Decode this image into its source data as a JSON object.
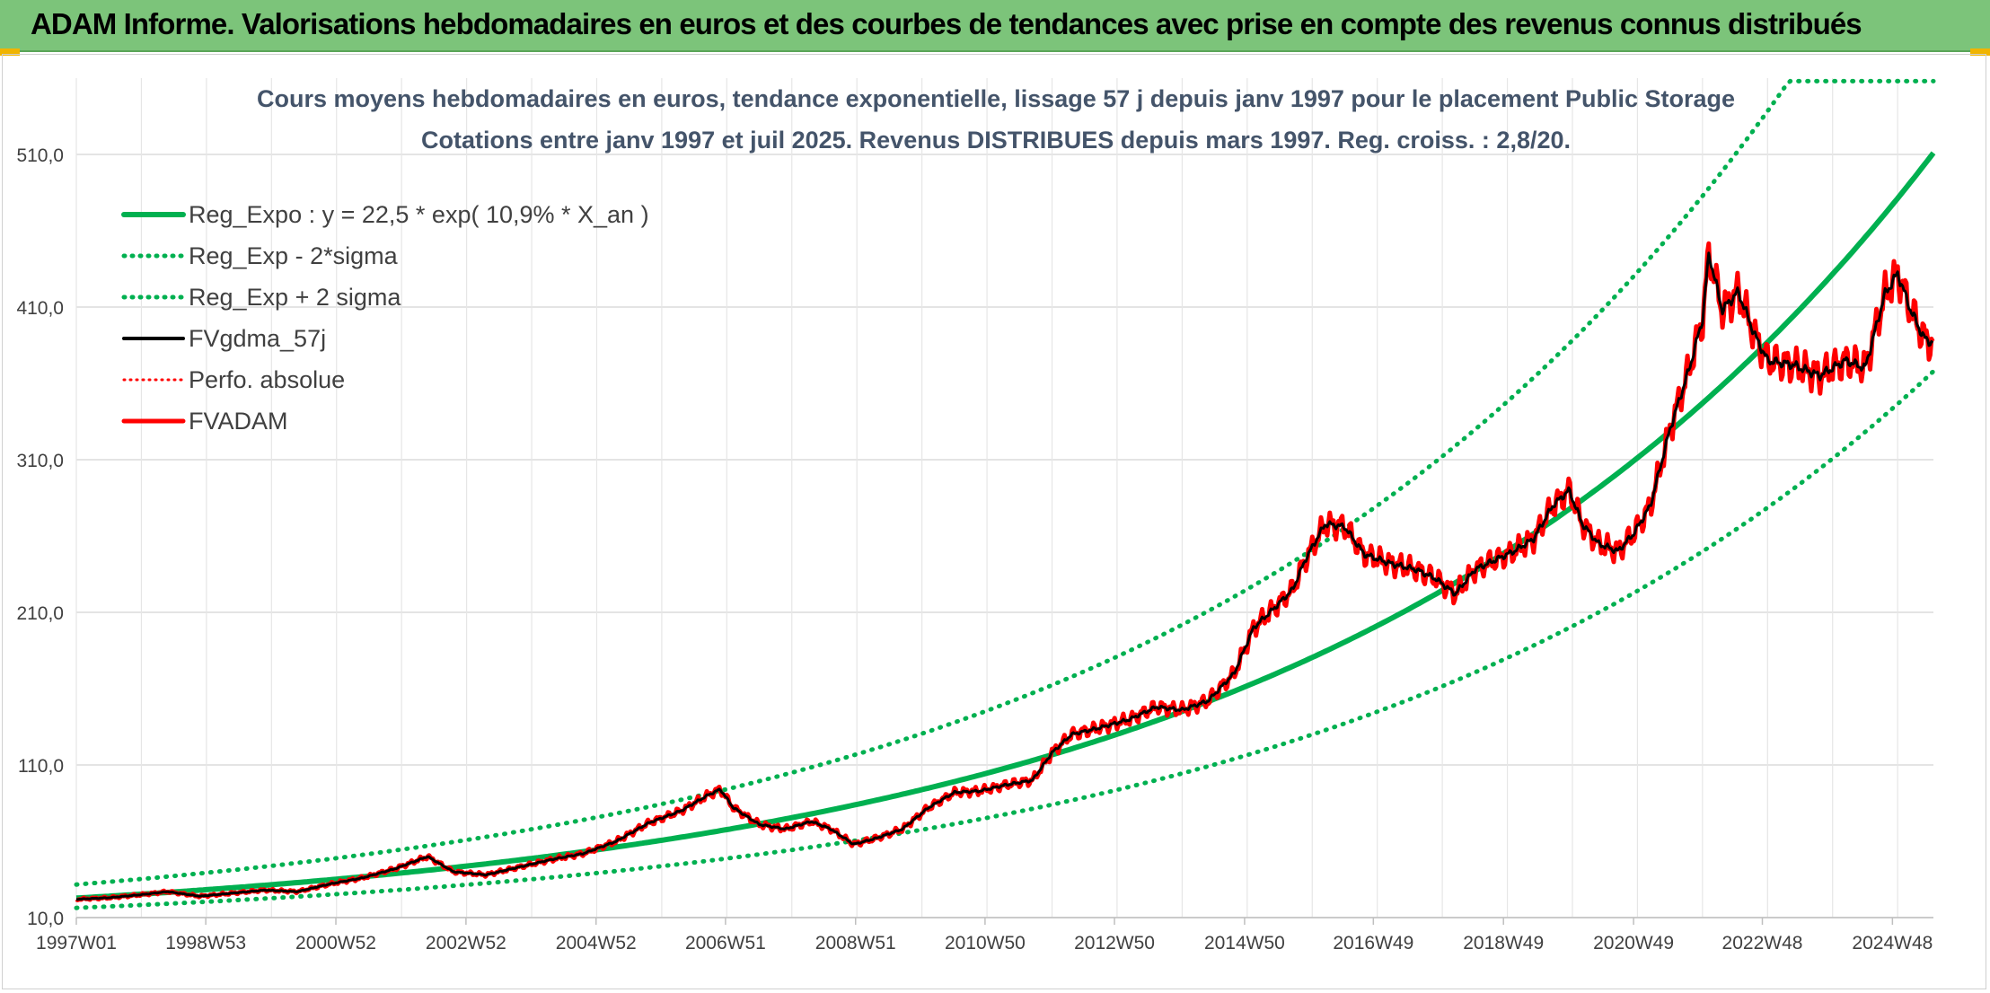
{
  "header": {
    "title": "ADAM Informe. Valorisations hebdomadaires en euros et des courbes de tendances avec prise en compte des revenus connus distribués"
  },
  "colors": {
    "header_bg": "#7cc47a",
    "trend_green": "#00b050",
    "smooth_black": "#000000",
    "price_red": "#ff0000",
    "grid": "#e0e0e0",
    "text": "#404040"
  },
  "chart_data": {
    "type": "line",
    "title": "Cours moyens hebdomadaires en euros, tendance exponentielle, lissage 57 j depuis janv 1997 pour le placement Public Storage",
    "subtitle": "Cotations entre janv 1997 et juil 2025. Revenus DISTRIBUES depuis mars 1997. Reg. croiss. : 2,8/20.",
    "xlabel": "",
    "ylabel": "",
    "x_range": [
      1997.0,
      2025.55
    ],
    "y_range": [
      10,
      560
    ],
    "y_ticks": [
      10,
      110,
      210,
      310,
      410,
      510
    ],
    "y_tick_labels": [
      "10,0",
      "110,0",
      "210,0",
      "310,0",
      "410,0",
      "510,0"
    ],
    "x_ticks": [
      1997.0,
      1998.99,
      2000.99,
      2002.99,
      2004.99,
      2006.98,
      2008.98,
      2010.97,
      2012.96,
      2014.96,
      2016.94,
      2018.94,
      2020.94,
      2022.92,
      2024.92
    ],
    "x_tick_labels": [
      "1997W01",
      "1998W53",
      "2000W52",
      "2002W52",
      "2004W52",
      "2006W51",
      "2008W51",
      "2010W50",
      "2012W50",
      "2014W50",
      "2016W49",
      "2018W49",
      "2020W49",
      "2022W48",
      "2024W48"
    ],
    "grid": true,
    "legend_position": "top-left",
    "series": [
      {
        "name": "Reg_Expo : y = 22,5 * exp( 10,9% *  X_an )",
        "color": "#00b050",
        "style": "solid",
        "width": 6,
        "formula": {
          "a": 22.5,
          "b": 0.109,
          "x0": 1996.9
        }
      },
      {
        "name": "Reg_Exp - 2*sigma",
        "color": "#00b050",
        "style": "dotted",
        "width": 5,
        "formula": {
          "a": 16.2,
          "b": 0.109,
          "x0": 1996.9
        }
      },
      {
        "name": "Reg_Exp + 2 sigma",
        "color": "#00b050",
        "style": "dotted",
        "width": 5,
        "formula": {
          "a": 31.3,
          "b": 0.109,
          "x0": 1996.9
        },
        "cap": 558
      },
      {
        "name": "FVgdma_57j",
        "color": "#000000",
        "style": "solid",
        "width": 3
      },
      {
        "name": "Perfo. absolue",
        "color": "#ff0000",
        "style": "dotted",
        "width": 3
      },
      {
        "name": "FVADAM",
        "color": "#ff0000",
        "style": "solid",
        "width": 5
      }
    ],
    "fvadam_points": [
      [
        1997.0,
        22
      ],
      [
        1997.5,
        23
      ],
      [
        1998.0,
        25
      ],
      [
        1998.4,
        27
      ],
      [
        1998.9,
        24
      ],
      [
        1999.4,
        26
      ],
      [
        1999.9,
        28
      ],
      [
        2000.4,
        27
      ],
      [
        2000.9,
        32
      ],
      [
        2001.4,
        36
      ],
      [
        2001.9,
        42
      ],
      [
        2002.4,
        50
      ],
      [
        2002.8,
        40
      ],
      [
        2003.3,
        38
      ],
      [
        2003.8,
        43
      ],
      [
        2004.3,
        48
      ],
      [
        2004.8,
        52
      ],
      [
        2005.3,
        60
      ],
      [
        2005.8,
        72
      ],
      [
        2006.3,
        80
      ],
      [
        2006.7,
        90
      ],
      [
        2006.9,
        94
      ],
      [
        2007.1,
        82
      ],
      [
        2007.5,
        71
      ],
      [
        2007.9,
        68
      ],
      [
        2008.3,
        73
      ],
      [
        2008.6,
        68
      ],
      [
        2008.95,
        58
      ],
      [
        2009.3,
        62
      ],
      [
        2009.7,
        68
      ],
      [
        2010.1,
        82
      ],
      [
        2010.5,
        92
      ],
      [
        2010.9,
        93
      ],
      [
        2011.3,
        97
      ],
      [
        2011.7,
        100
      ],
      [
        2012.0,
        118
      ],
      [
        2012.3,
        130
      ],
      [
        2012.7,
        134
      ],
      [
        2013.2,
        140
      ],
      [
        2013.6,
        148
      ],
      [
        2014.0,
        146
      ],
      [
        2014.4,
        152
      ],
      [
        2014.8,
        170
      ],
      [
        2015.1,
        200
      ],
      [
        2015.4,
        212
      ],
      [
        2015.7,
        225
      ],
      [
        2015.9,
        245
      ],
      [
        2016.2,
        268
      ],
      [
        2016.5,
        266
      ],
      [
        2016.8,
        248
      ],
      [
        2017.2,
        242
      ],
      [
        2017.6,
        238
      ],
      [
        2017.9,
        232
      ],
      [
        2018.2,
        222
      ],
      [
        2018.5,
        238
      ],
      [
        2018.8,
        244
      ],
      [
        2019.1,
        250
      ],
      [
        2019.4,
        258
      ],
      [
        2019.7,
        280
      ],
      [
        2019.95,
        290
      ],
      [
        2020.15,
        268
      ],
      [
        2020.4,
        255
      ],
      [
        2020.7,
        250
      ],
      [
        2020.95,
        262
      ],
      [
        2021.2,
        280
      ],
      [
        2021.5,
        330
      ],
      [
        2021.8,
        370
      ],
      [
        2022.0,
        402
      ],
      [
        2022.1,
        445
      ],
      [
        2022.3,
        408
      ],
      [
        2022.55,
        420
      ],
      [
        2022.8,
        392
      ],
      [
        2023.0,
        375
      ],
      [
        2023.4,
        372
      ],
      [
        2023.8,
        365
      ],
      [
        2024.2,
        375
      ],
      [
        2024.5,
        370
      ],
      [
        2024.8,
        418
      ],
      [
        2025.0,
        432
      ],
      [
        2025.2,
        408
      ],
      [
        2025.4,
        390
      ],
      [
        2025.55,
        386
      ]
    ]
  }
}
